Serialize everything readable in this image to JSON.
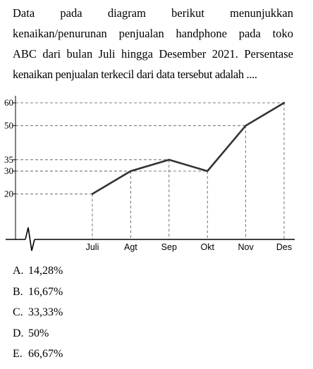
{
  "question": {
    "lines": [
      "Data pada diagram berikut menunjukkan",
      "kenaikan/penurunan penjualan handphone pada toko",
      "ABC dari bulan Juli hingga Desember 2021. Persentase",
      "kenaikan penjualan terkecil dari data tersebut adalah ...."
    ]
  },
  "chart_data": {
    "type": "line",
    "categories": [
      "Juli",
      "Agt",
      "Sep",
      "Okt",
      "Nov",
      "Des"
    ],
    "values": [
      20,
      30,
      35,
      30,
      50,
      60
    ],
    "y_ticks": [
      20,
      30,
      35,
      50,
      60
    ],
    "ylim": [
      0,
      60
    ],
    "title": "",
    "xlabel": "",
    "ylabel": "",
    "grid": "dashed guide lines from each point to both axes",
    "axis_break": true,
    "colors": {
      "line": "#333333",
      "guides": "#555555",
      "axis": "#000000"
    }
  },
  "options": [
    {
      "letter": "A.",
      "text": "14,28%"
    },
    {
      "letter": "B.",
      "text": "16,67%"
    },
    {
      "letter": "C.",
      "text": "33,33%"
    },
    {
      "letter": "D.",
      "text": "50%"
    },
    {
      "letter": "E.",
      "text": "66,67%"
    }
  ]
}
